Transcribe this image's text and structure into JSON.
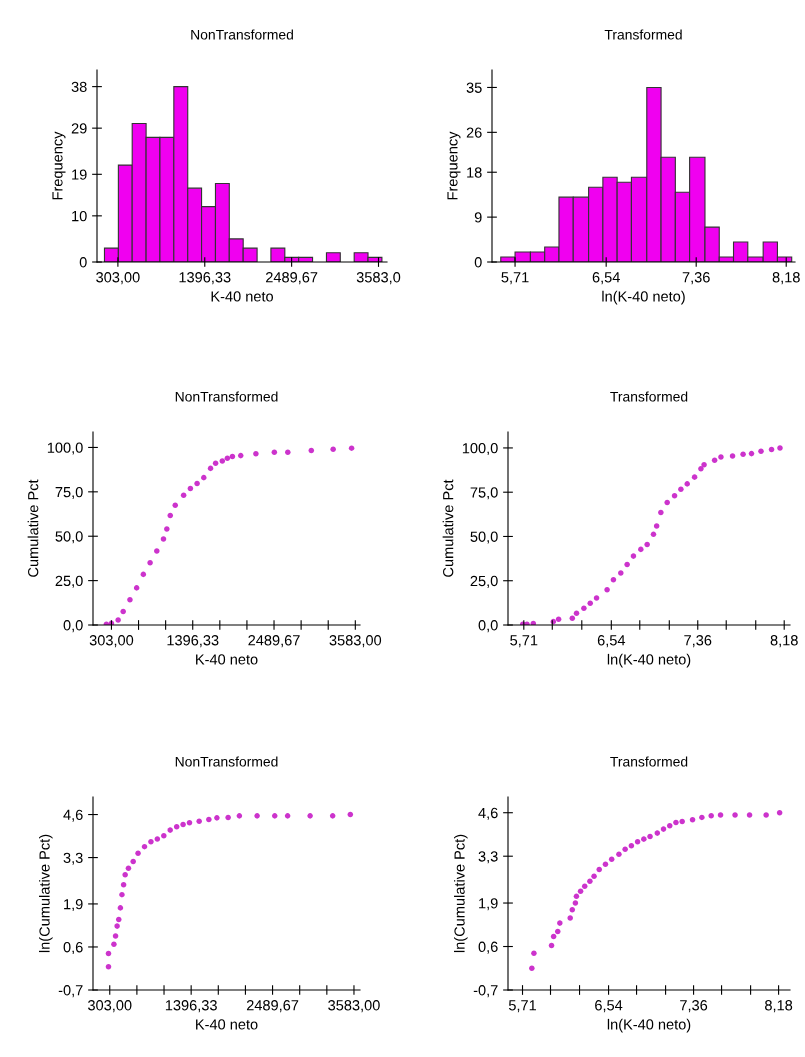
{
  "chart_data": [
    {
      "type": "histogram",
      "title": "NonTransformed",
      "xlabel": "K-40 neto",
      "ylabel": "Frequency",
      "color": "#f000f0",
      "bins": [
        134,
        309,
        483,
        658,
        832,
        1007,
        1182,
        1356,
        1531,
        1705,
        1880,
        2055,
        2229,
        2404,
        2578,
        2753,
        2928,
        3102,
        3277,
        3451,
        3626
      ],
      "values": [
        3,
        21,
        30,
        27,
        27,
        38,
        16,
        12,
        17,
        5,
        3,
        0,
        3,
        1,
        1,
        0,
        2,
        0,
        2,
        1
      ],
      "xlim": [
        40,
        3690
      ],
      "xticks": [
        {
          "value": 303,
          "label": "303,00"
        },
        {
          "value": 1396.33,
          "label": "1396,33"
        },
        {
          "value": 2489.67,
          "label": "2489,67"
        },
        {
          "value": 3583,
          "label": "3583,0"
        }
      ],
      "ylim": [
        0,
        41.6
      ],
      "yticks": [
        0,
        10,
        19,
        29,
        38
      ]
    },
    {
      "type": "histogram",
      "title": "Transformed",
      "xlabel": "ln(K-40 neto)",
      "ylabel": "Frequency",
      "color": "#f000f0",
      "bins": [
        5.58,
        5.71,
        5.85,
        5.98,
        6.11,
        6.24,
        6.38,
        6.51,
        6.64,
        6.77,
        6.91,
        7.04,
        7.17,
        7.3,
        7.44,
        7.57,
        7.7,
        7.83,
        7.97,
        8.1,
        8.23
      ],
      "values": [
        1,
        2,
        2,
        3,
        13,
        13,
        15,
        17,
        16,
        17,
        35,
        21,
        14,
        21,
        7,
        1,
        4,
        1,
        4,
        1
      ],
      "xlim": [
        5.5,
        8.26
      ],
      "xticks": [
        {
          "value": 5.71,
          "label": "5,71"
        },
        {
          "value": 6.54,
          "label": "6,54"
        },
        {
          "value": 7.36,
          "label": "7,36"
        },
        {
          "value": 8.18,
          "label": "8,18"
        }
      ],
      "ylim": [
        0,
        38.5
      ],
      "yticks": [
        0,
        9,
        18,
        26,
        35
      ]
    },
    {
      "type": "scatter",
      "title": "NonTransformed",
      "xlabel": "K-40 neto",
      "ylabel": "Cumulative Pct",
      "marker": "circle",
      "color": "#cc33cc",
      "x": [
        235,
        303,
        393,
        461,
        552,
        642,
        732,
        823,
        913,
        1003,
        1048,
        1094,
        1161,
        1274,
        1365,
        1455,
        1545,
        1636,
        1704,
        1794,
        1862,
        1930,
        2042,
        2246,
        2494,
        2675,
        2991,
        3285,
        3533
      ],
      "values": [
        0.4,
        0.9,
        2.8,
        7.6,
        14.2,
        20.9,
        28.5,
        35.1,
        41.7,
        48.4,
        54.1,
        61.7,
        67.4,
        73.1,
        76.9,
        79.7,
        83.0,
        88.2,
        91.1,
        92.4,
        93.9,
        94.9,
        95.4,
        96.4,
        97.3,
        97.3,
        98.3,
        99.0,
        99.6
      ],
      "xlim": [
        55,
        3646
      ],
      "xticks": [
        {
          "value": 303,
          "label": "303,00"
        },
        {
          "value": 667.44,
          "label": null
        },
        {
          "value": 1031.89,
          "label": null
        },
        {
          "value": 1396.33,
          "label": "1396,33"
        },
        {
          "value": 1760.78,
          "label": null
        },
        {
          "value": 2125.22,
          "label": null
        },
        {
          "value": 2489.67,
          "label": "2489,67"
        },
        {
          "value": 2854.11,
          "label": null
        },
        {
          "value": 3218.56,
          "label": null
        },
        {
          "value": 3583,
          "label": "3583,00"
        }
      ],
      "ylim": [
        0,
        108.7
      ],
      "yticks": [
        {
          "value": 0,
          "label": "0,0"
        },
        {
          "value": 25,
          "label": "25,0"
        },
        {
          "value": 50,
          "label": "50,0"
        },
        {
          "value": 75,
          "label": "75,0"
        },
        {
          "value": 100,
          "label": "100,0"
        }
      ]
    },
    {
      "type": "scatter",
      "title": "Transformed",
      "xlabel": "ln(K-40 neto)",
      "ylabel": "Cumulative Pct",
      "marker": "circle",
      "color": "#cc33cc",
      "x": [
        5.7,
        5.74,
        5.8,
        5.99,
        6.04,
        6.17,
        6.21,
        6.28,
        6.34,
        6.4,
        6.5,
        6.56,
        6.63,
        6.69,
        6.75,
        6.82,
        6.88,
        6.94,
        6.97,
        7.01,
        7.07,
        7.14,
        7.2,
        7.26,
        7.33,
        7.39,
        7.42,
        7.52,
        7.58,
        7.69,
        7.79,
        7.87,
        7.96,
        8.06,
        8.14
      ],
      "values": [
        0.4,
        0.4,
        0.9,
        1.9,
        3.2,
        3.8,
        6.6,
        9.5,
        12.3,
        15.2,
        19.9,
        25.6,
        29.4,
        34.2,
        38.9,
        42.7,
        45.5,
        51.2,
        55.9,
        63.5,
        69.2,
        73.0,
        76.7,
        79.7,
        83.5,
        88.2,
        90.5,
        93.0,
        94.9,
        95.4,
        96.4,
        96.8,
        98.1,
        99.1,
        100.0
      ],
      "xlim": [
        5.56,
        8.235
      ],
      "xticks": [
        {
          "value": 5.71,
          "label": "5,71"
        },
        {
          "value": 5.98,
          "label": null
        },
        {
          "value": 6.26,
          "label": null
        },
        {
          "value": 6.54,
          "label": "6,54"
        },
        {
          "value": 6.81,
          "label": null
        },
        {
          "value": 7.09,
          "label": null
        },
        {
          "value": 7.36,
          "label": "7,36"
        },
        {
          "value": 7.63,
          "label": null
        },
        {
          "value": 7.91,
          "label": null
        },
        {
          "value": 8.18,
          "label": "8,18"
        }
      ],
      "ylim": [
        0,
        109
      ],
      "yticks": [
        {
          "value": 0,
          "label": "0,0"
        },
        {
          "value": 25,
          "label": "25,0"
        },
        {
          "value": 50,
          "label": "50,0"
        },
        {
          "value": 75,
          "label": "75,0"
        },
        {
          "value": 100,
          "label": "100,0"
        }
      ]
    },
    {
      "type": "scatter",
      "title": "NonTransformed",
      "xlabel": "K-40 neto",
      "ylabel": "ln(Cumulative Pct)",
      "marker": "circle",
      "color": "#cc33cc",
      "x": [
        286,
        286,
        359,
        381,
        402,
        424,
        446,
        467,
        489,
        510,
        554,
        618,
        683,
        770,
        856,
        942,
        1029,
        1115,
        1202,
        1288,
        1374,
        1504,
        1634,
        1742,
        1893,
        2044,
        2282,
        2519,
        2692,
        2994,
        3297,
        3534
      ],
      "values": [
        0.0,
        0.4,
        0.68,
        0.93,
        1.23,
        1.43,
        1.78,
        2.18,
        2.48,
        2.78,
        2.98,
        3.18,
        3.43,
        3.63,
        3.78,
        3.86,
        3.96,
        4.13,
        4.23,
        4.3,
        4.35,
        4.4,
        4.45,
        4.5,
        4.51,
        4.56,
        4.56,
        4.56,
        4.56,
        4.56,
        4.56,
        4.6
      ],
      "xlim": [
        78,
        3664
      ],
      "xticks": [
        {
          "value": 303,
          "label": "303,00"
        },
        {
          "value": 667.44,
          "label": null
        },
        {
          "value": 1031.89,
          "label": null
        },
        {
          "value": 1396.33,
          "label": "1396,33"
        },
        {
          "value": 1760.78,
          "label": null
        },
        {
          "value": 2125.22,
          "label": null
        },
        {
          "value": 2489.67,
          "label": "2489,67"
        },
        {
          "value": 2854.11,
          "label": null
        },
        {
          "value": 3218.56,
          "label": null
        },
        {
          "value": 3583,
          "label": "3583,00"
        }
      ],
      "ylim": [
        -0.7,
        5.13
      ],
      "yticks": [
        {
          "value": -0.7,
          "label": "-0,7"
        },
        {
          "value": 0.6,
          "label": "0,6"
        },
        {
          "value": 1.9,
          "label": "1,9"
        },
        {
          "value": 3.3,
          "label": "3,3"
        },
        {
          "value": 4.6,
          "label": "4,6"
        }
      ]
    },
    {
      "type": "scatter",
      "title": "Transformed",
      "xlabel": "ln(K-40 neto)",
      "ylabel": "ln(Cumulative Pct)",
      "marker": "circle",
      "color": "#cc33cc",
      "x": [
        5.8,
        5.82,
        5.99,
        6.01,
        6.05,
        6.07,
        6.17,
        6.19,
        6.22,
        6.23,
        6.27,
        6.31,
        6.36,
        6.4,
        6.45,
        6.51,
        6.57,
        6.64,
        6.7,
        6.76,
        6.82,
        6.88,
        6.94,
        7.01,
        7.07,
        7.13,
        7.19,
        7.25,
        7.35,
        7.44,
        7.53,
        7.62,
        7.76,
        7.9,
        8.06,
        8.19
      ],
      "values": [
        -0.05,
        0.4,
        0.63,
        0.9,
        1.05,
        1.3,
        1.45,
        1.7,
        1.9,
        2.1,
        2.25,
        2.4,
        2.55,
        2.7,
        2.9,
        3.06,
        3.21,
        3.36,
        3.51,
        3.61,
        3.73,
        3.81,
        3.89,
        3.99,
        4.11,
        4.21,
        4.31,
        4.34,
        4.39,
        4.46,
        4.51,
        4.53,
        4.53,
        4.53,
        4.53,
        4.6
      ],
      "xlim": [
        5.57,
        8.29
      ],
      "xticks": [
        {
          "value": 5.71,
          "label": "5,71"
        },
        {
          "value": 5.98,
          "label": null
        },
        {
          "value": 6.26,
          "label": null
        },
        {
          "value": 6.54,
          "label": "6,54"
        },
        {
          "value": 6.81,
          "label": null
        },
        {
          "value": 7.09,
          "label": null
        },
        {
          "value": 7.36,
          "label": "7,36"
        },
        {
          "value": 7.63,
          "label": null
        },
        {
          "value": 7.91,
          "label": null
        },
        {
          "value": 8.18,
          "label": "8,18"
        }
      ],
      "ylim": [
        -0.7,
        5.07
      ],
      "yticks": [
        {
          "value": -0.7,
          "label": "-0,7"
        },
        {
          "value": 0.6,
          "label": "0,6"
        },
        {
          "value": 1.9,
          "label": "1,9"
        },
        {
          "value": 3.3,
          "label": "3,3"
        },
        {
          "value": 4.6,
          "label": "4,6"
        }
      ]
    }
  ]
}
